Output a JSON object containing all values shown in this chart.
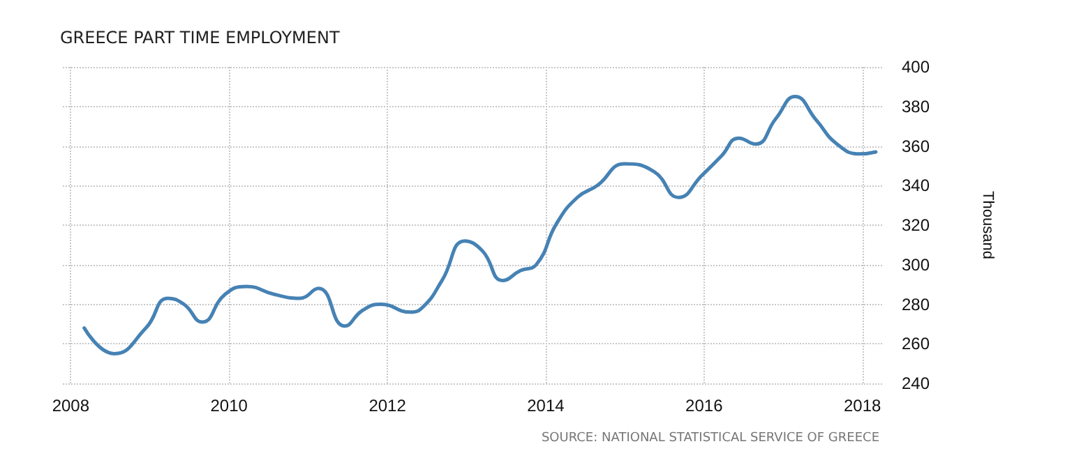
{
  "chart_data": {
    "type": "line",
    "title": "GREECE PART TIME EMPLOYMENT",
    "ylabel": "Thousand",
    "annotations": [
      "SOURCE: NATIONAL STATISTICAL SERVICE OF GREECE"
    ],
    "x": [
      2008.17,
      2008.55,
      2008.95,
      2009.23,
      2009.43,
      2009.66,
      2009.95,
      2010.22,
      2010.57,
      2010.89,
      2011.13,
      2011.46,
      2011.69,
      2011.92,
      2012.29,
      2012.46,
      2012.69,
      2012.98,
      2013.2,
      2013.46,
      2013.68,
      2013.88,
      2014.14,
      2014.4,
      2014.65,
      2015.0,
      2015.37,
      2015.68,
      2015.97,
      2016.22,
      2016.44,
      2016.65,
      2016.91,
      2017.15,
      2017.42,
      2017.68,
      2017.97,
      2018.17
    ],
    "series": [
      {
        "color": "#4682b4",
        "values": [
          268,
          255,
          268,
          283,
          280,
          271,
          285,
          289,
          285,
          283,
          288,
          269,
          277,
          280,
          276,
          279,
          292,
          312,
          307,
          292,
          297,
          300,
          321,
          334,
          340,
          351,
          347,
          334,
          345,
          355,
          364,
          361,
          374,
          385,
          373,
          361,
          356,
          357
        ]
      }
    ],
    "xlim": [
      2007.9,
      2018.25
    ],
    "xticks": [
      2008,
      2010,
      2012,
      2014,
      2016,
      2018
    ],
    "ylim": [
      240,
      400
    ],
    "yticks": [
      240,
      260,
      280,
      300,
      320,
      340,
      360,
      380,
      400
    ],
    "grid": true,
    "marker": "none",
    "line_style": "solid"
  }
}
